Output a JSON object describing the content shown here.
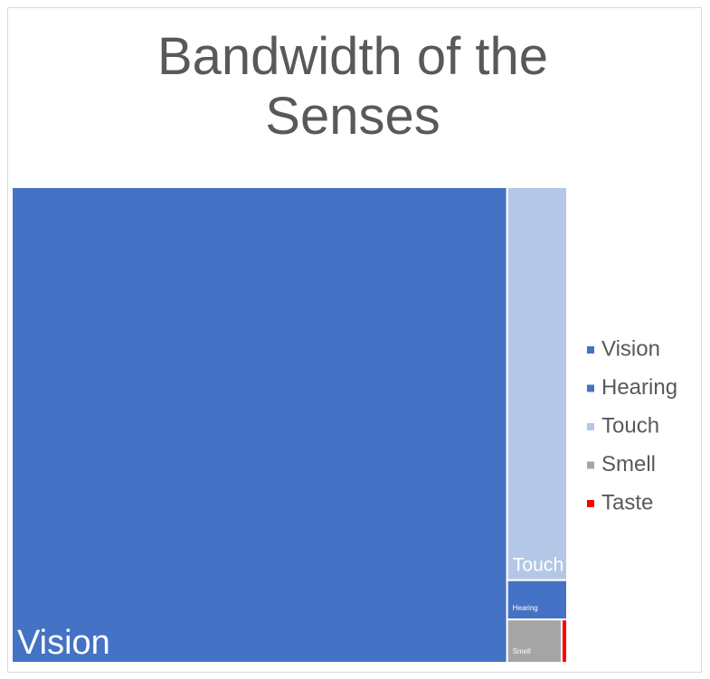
{
  "chart_data": {
    "type": "treemap",
    "title": "Bandwidth of the Senses",
    "categories": [
      "Vision",
      "Hearing",
      "Touch",
      "Smell",
      "Taste"
    ],
    "values": [
      10000000,
      100000,
      1000000,
      100000,
      10000
    ],
    "colors": [
      "#4472c4",
      "#4472c4",
      "#b4c7e7",
      "#a5a5a5",
      "#ff0000"
    ],
    "legend": "right"
  }
}
